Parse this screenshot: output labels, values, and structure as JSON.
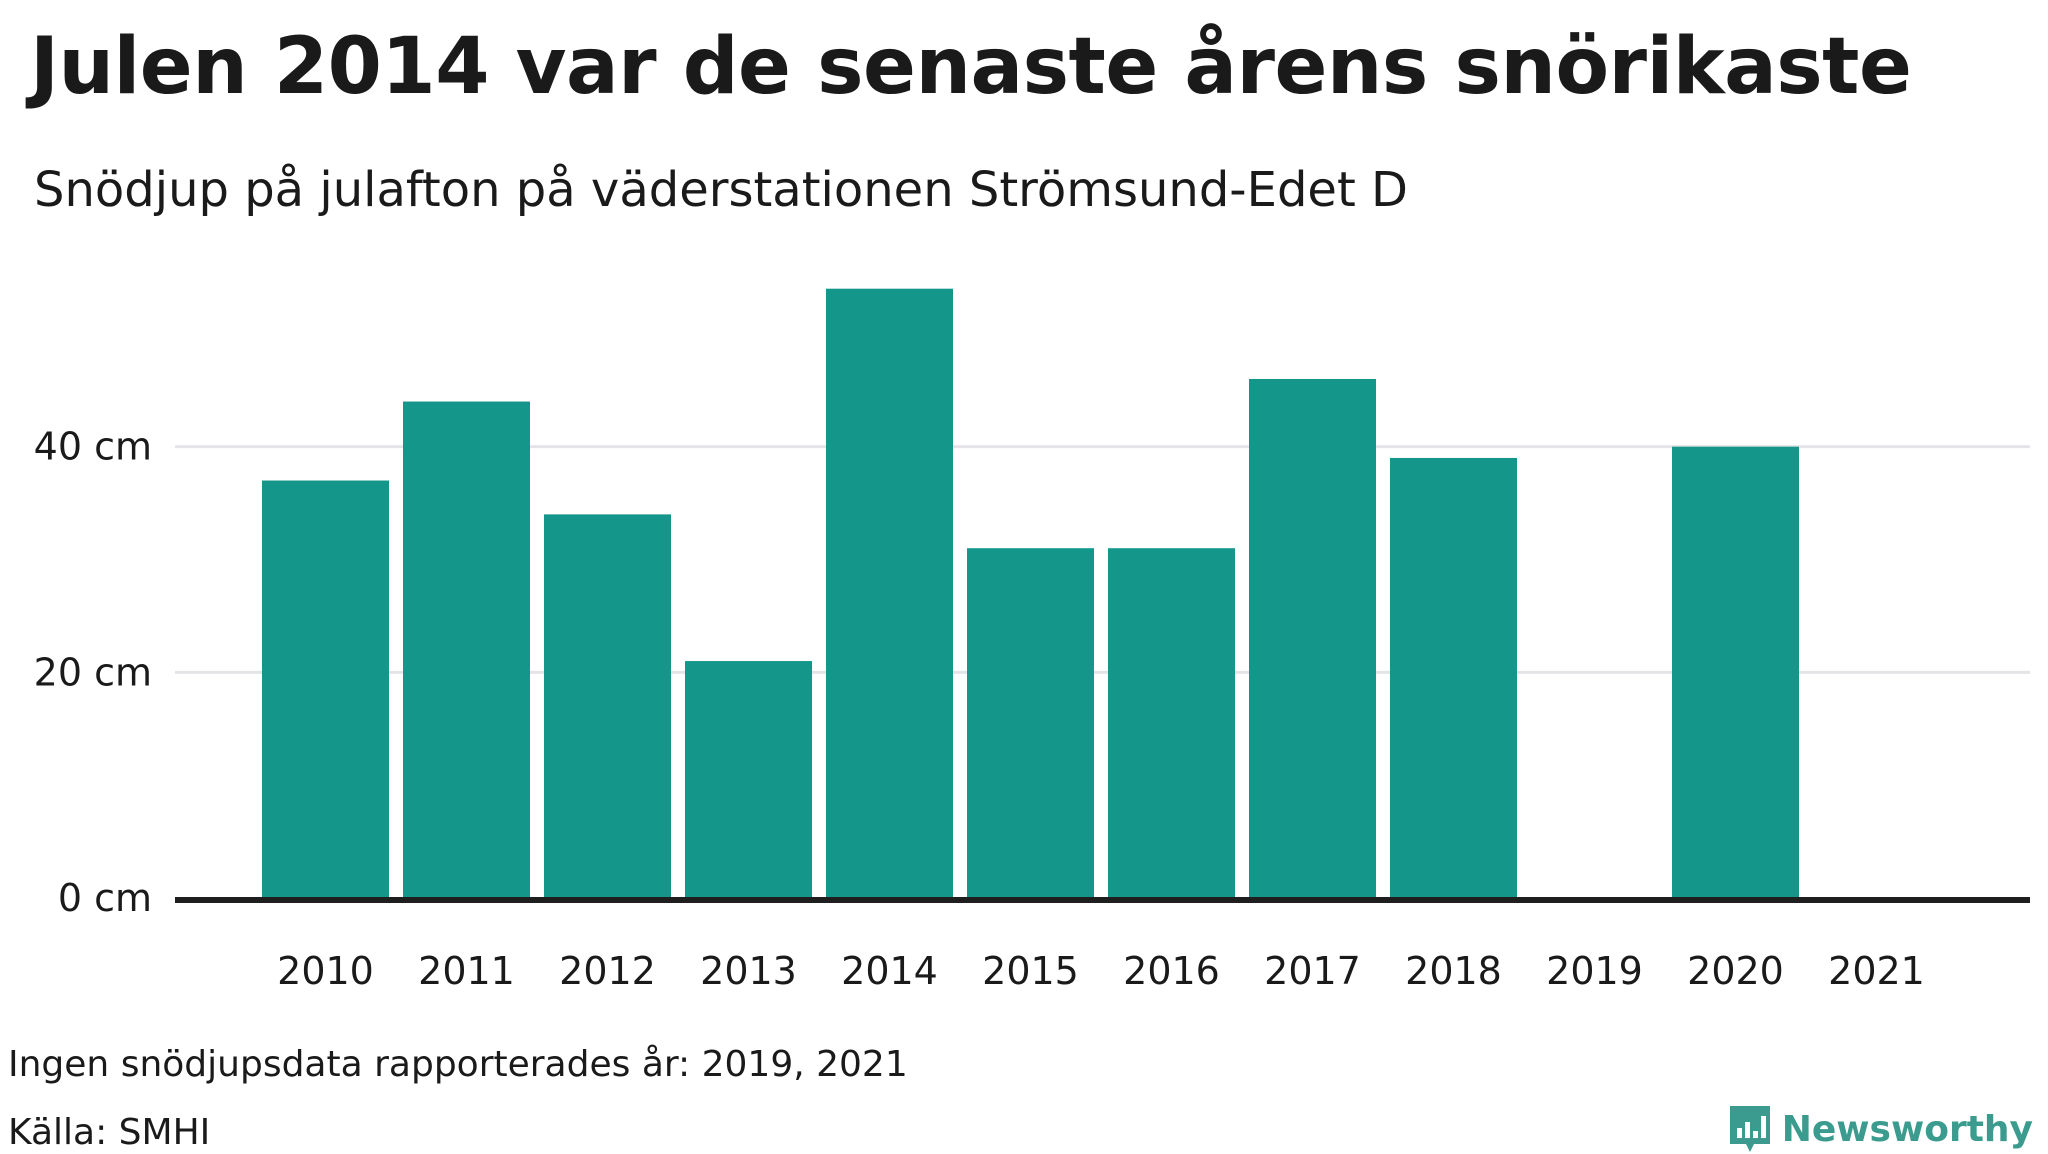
{
  "title": "Julen 2014 var de senaste årens snörikaste",
  "subtitle": "Snödjup på julafton på väderstationen Strömsund-Edet D",
  "note": "Ingen snödjupsdata rapporterades år: 2019, 2021",
  "source": "Källa: SMHI",
  "brand": {
    "name": "Newsworthy",
    "icon": "newsworthy-logo-icon"
  },
  "colors": {
    "bar": "#15968a",
    "grid": "#e4e4e8",
    "baseline": "#1f1f1f",
    "brand": "#3a9b8e"
  },
  "chart_data": {
    "type": "bar",
    "categories": [
      "2010",
      "2011",
      "2012",
      "2013",
      "2014",
      "2015",
      "2016",
      "2017",
      "2018",
      "2019",
      "2020",
      "2021"
    ],
    "values": [
      37,
      44,
      34,
      21,
      54,
      31,
      31,
      46,
      39,
      null,
      40,
      null
    ],
    "ylim": [
      0,
      60
    ],
    "yticks": [
      {
        "value": 0,
        "label": "0 cm"
      },
      {
        "value": 20,
        "label": "20 cm"
      },
      {
        "value": 40,
        "label": "40 cm"
      }
    ],
    "grid": true,
    "xlabel": "",
    "ylabel": ""
  }
}
